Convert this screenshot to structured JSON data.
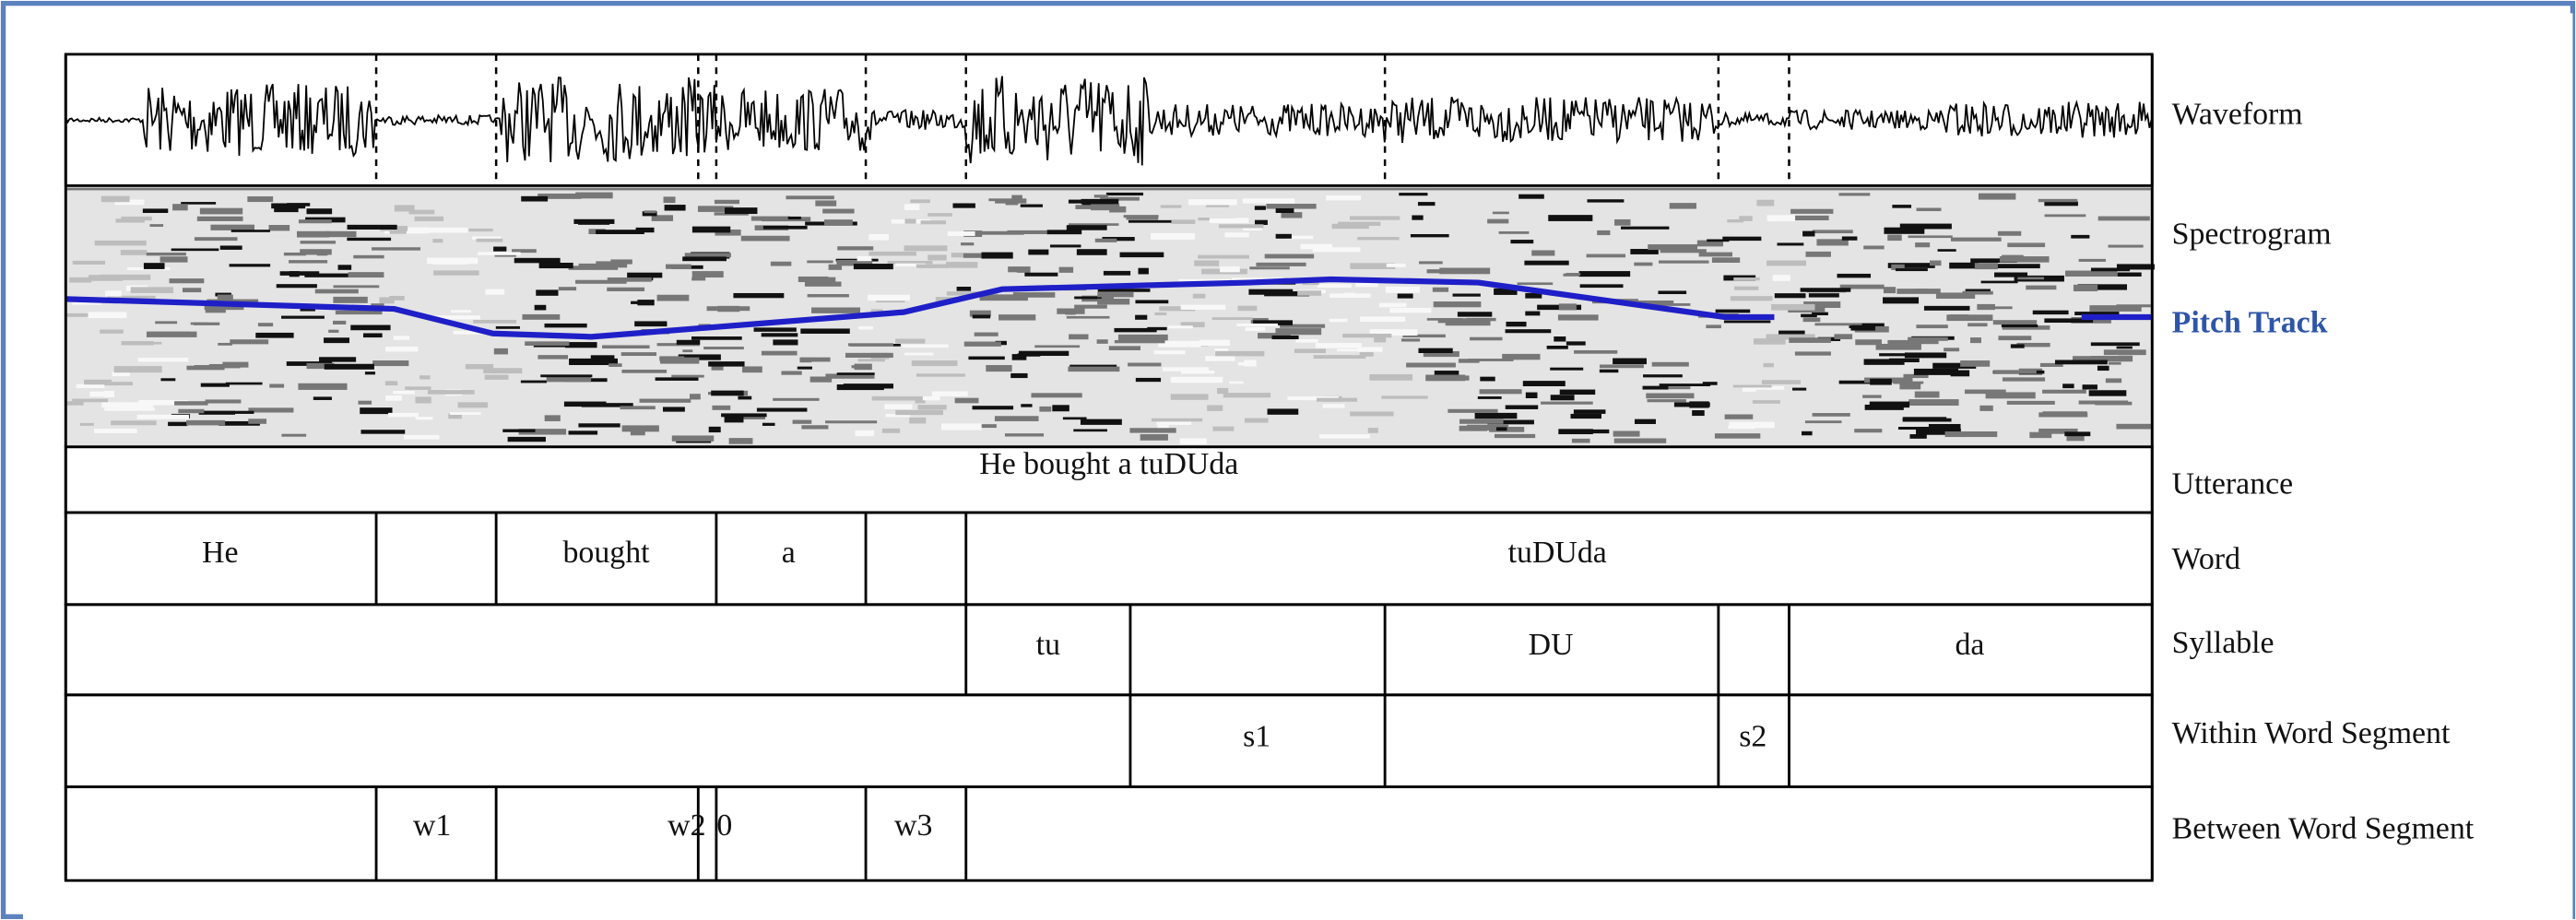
{
  "tier_labels": [
    "Waveform",
    "Spectrogram",
    "Pitch Track",
    "Utterance",
    "Word",
    "Syllable",
    "Within Word Segment",
    "Between Word Segment"
  ],
  "utterance": "He bought a tuDUda",
  "words": [
    "He",
    "bought",
    "a",
    "tuDUda"
  ],
  "syllables": [
    "tu",
    "DU",
    "da"
  ],
  "within_word_segments": [
    "s1",
    "s2"
  ],
  "between_word_segments": [
    "w1",
    "w2",
    "0",
    "w3"
  ]
}
